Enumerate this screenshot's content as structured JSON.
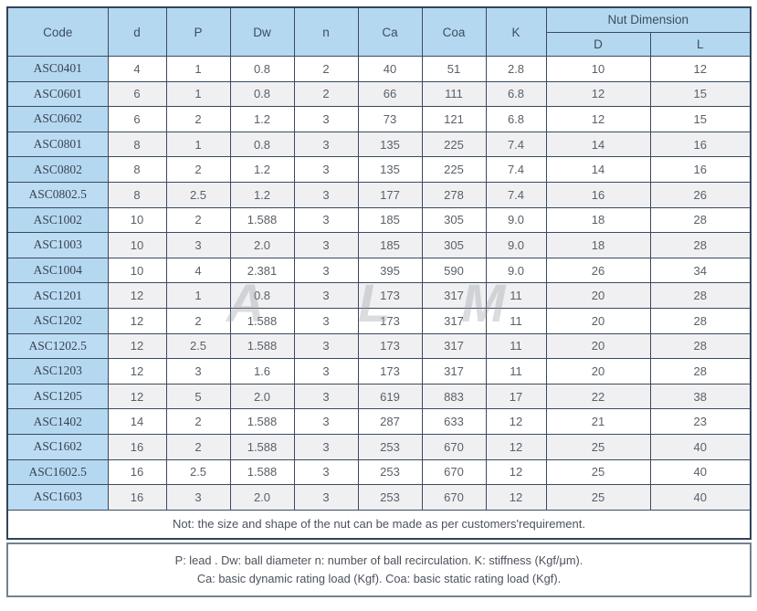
{
  "table": {
    "headers": {
      "code": "Code",
      "d": "d",
      "p": "P",
      "dw": "Dw",
      "n": "n",
      "ca": "Ca",
      "coa": "Coa",
      "k": "K",
      "nut_dimension": "Nut Dimension",
      "nut_d": "D",
      "nut_l": "L"
    },
    "rows": [
      [
        "ASC0401",
        "4",
        "1",
        "0.8",
        "2",
        "40",
        "51",
        "2.8",
        "10",
        "12"
      ],
      [
        "ASC0601",
        "6",
        "1",
        "0.8",
        "2",
        "66",
        "111",
        "6.8",
        "12",
        "15"
      ],
      [
        "ASC0602",
        "6",
        "2",
        "1.2",
        "3",
        "73",
        "121",
        "6.8",
        "12",
        "15"
      ],
      [
        "ASC0801",
        "8",
        "1",
        "0.8",
        "3",
        "135",
        "225",
        "7.4",
        "14",
        "16"
      ],
      [
        "ASC0802",
        "8",
        "2",
        "1.2",
        "3",
        "135",
        "225",
        "7.4",
        "14",
        "16"
      ],
      [
        "ASC0802.5",
        "8",
        "2.5",
        "1.2",
        "3",
        "177",
        "278",
        "7.4",
        "16",
        "26"
      ],
      [
        "ASC1002",
        "10",
        "2",
        "1.588",
        "3",
        "185",
        "305",
        "9.0",
        "18",
        "28"
      ],
      [
        "ASC1003",
        "10",
        "3",
        "2.0",
        "3",
        "185",
        "305",
        "9.0",
        "18",
        "28"
      ],
      [
        "ASC1004",
        "10",
        "4",
        "2.381",
        "3",
        "395",
        "590",
        "9.0",
        "26",
        "34"
      ],
      [
        "ASC1201",
        "12",
        "1",
        "0.8",
        "3",
        "173",
        "317",
        "11",
        "20",
        "28"
      ],
      [
        "ASC1202",
        "12",
        "2",
        "1.588",
        "3",
        "173",
        "317",
        "11",
        "20",
        "28"
      ],
      [
        "ASC1202.5",
        "12",
        "2.5",
        "1.588",
        "3",
        "173",
        "317",
        "11",
        "20",
        "28"
      ],
      [
        "ASC1203",
        "12",
        "3",
        "1.6",
        "3",
        "173",
        "317",
        "11",
        "20",
        "28"
      ],
      [
        "ASC1205",
        "12",
        "5",
        "2.0",
        "3",
        "619",
        "883",
        "17",
        "22",
        "38"
      ],
      [
        "ASC1402",
        "14",
        "2",
        "1.588",
        "3",
        "287",
        "633",
        "12",
        "21",
        "23"
      ],
      [
        "ASC1602",
        "16",
        "2",
        "1.588",
        "3",
        "253",
        "670",
        "12",
        "25",
        "40"
      ],
      [
        "ASC1602.5",
        "16",
        "2.5",
        "1.588",
        "3",
        "253",
        "670",
        "12",
        "25",
        "40"
      ],
      [
        "ASC1603",
        "16",
        "3",
        "2.0",
        "3",
        "253",
        "670",
        "12",
        "25",
        "40"
      ]
    ],
    "note": "Not: the size and shape of the nut can be made as per customers'requirement."
  },
  "footnotes": {
    "line1": "P: lead . Dw: ball diameter n: number of ball recirculation. K: stiffness (Kgf/μm).",
    "line2": "Ca: basic dynamic rating load (Kgf). Coa: basic static rating load (Kgf)."
  },
  "watermark": {
    "letters": [
      "A",
      "L",
      "M"
    ]
  },
  "colors": {
    "header_blue": "#b5d8f1",
    "alt_row_gray": "#f0f0f2",
    "border_dark": "#33435a",
    "footnote_border": "#76808e",
    "watermark_gray": "#9a9fa6"
  }
}
